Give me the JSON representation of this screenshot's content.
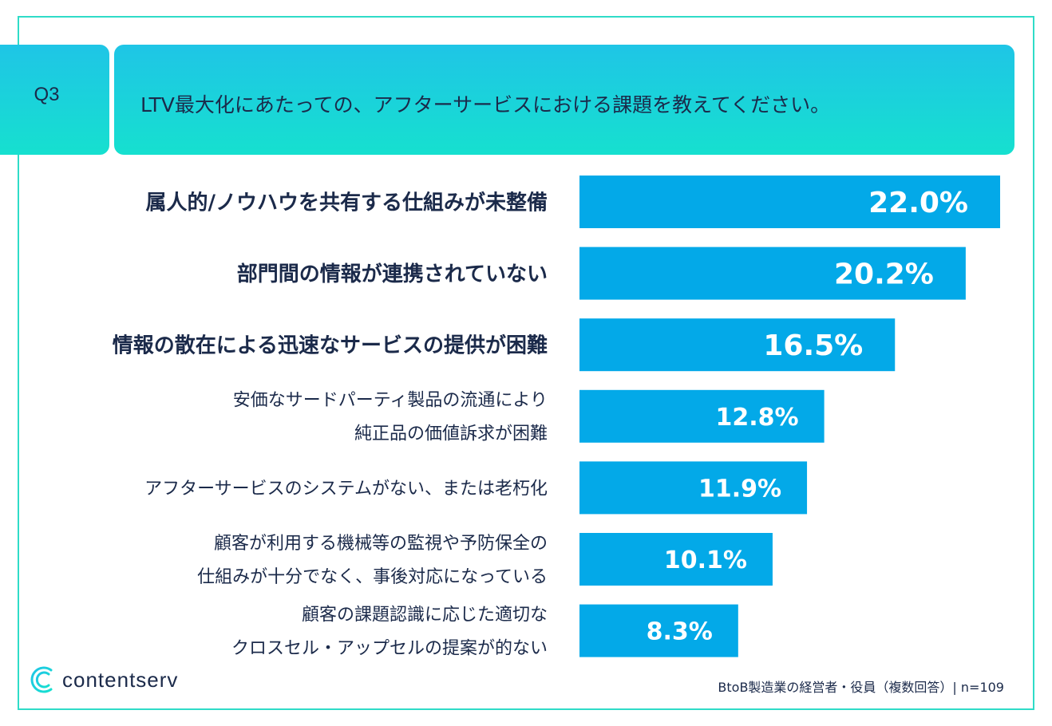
{
  "question": {
    "number": "Q3",
    "text": "LTV最大化にあたっての、アフターサービスにおける課題を教えてください。"
  },
  "chart_data": {
    "type": "bar",
    "orientation": "horizontal",
    "unit": "%",
    "xlim": [
      0,
      22
    ],
    "categories": [
      [
        "属人的/ノウハウを共有する仕組みが未整備"
      ],
      [
        "部門間の情報が連携されていない"
      ],
      [
        "情報の散在による迅速なサービスの提供が困難"
      ],
      [
        "安価なサードパーティ製品の流通により",
        "純正品の価値訴求が困難"
      ],
      [
        "アフターサービスのシステムがない、または老朽化"
      ],
      [
        "顧客が利用する機械等の監視や予防保全の",
        "仕組みが十分でなく、事後対応になっている"
      ],
      [
        "顧客の課題認識に応じた適切な",
        "クロスセル・アップセルの提案が的ない"
      ]
    ],
    "values": [
      22.0,
      20.2,
      16.5,
      12.8,
      11.9,
      10.1,
      8.3
    ],
    "value_labels": [
      "22.0%",
      "20.2%",
      "16.5%",
      "12.8%",
      "11.9%",
      "10.1%",
      "8.3%"
    ],
    "highlighted_top": 3
  },
  "footer": {
    "brand": "contentserv",
    "note": "BtoB製造業の経営者・役員（複数回答）| n=109"
  },
  "colors": {
    "bar": "#03a9e8",
    "header_top": "#1fc5e6",
    "header_bottom": "#16e0cf",
    "text": "#1b2a4a"
  }
}
